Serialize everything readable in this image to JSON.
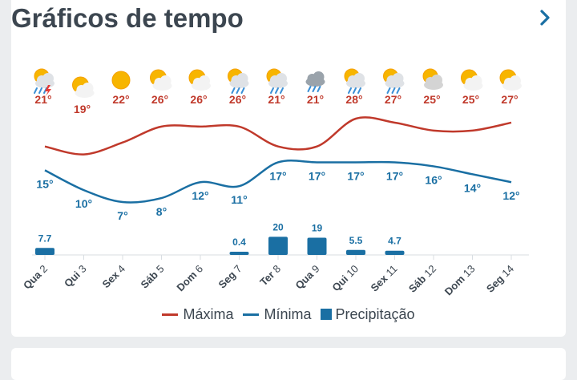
{
  "header": {
    "title": "Gráficos de tempo",
    "next_icon": "chevron-right-icon"
  },
  "colors": {
    "max": "#c0392b",
    "min": "#1a6fa3",
    "precip": "#1a6fa3",
    "axis_text": "#3c4650",
    "grid": "#d8dde2"
  },
  "chart_data": {
    "type": "line",
    "categories": [
      {
        "day": "Qua",
        "num": "2"
      },
      {
        "day": "Qui",
        "num": "3"
      },
      {
        "day": "Sex",
        "num": "4"
      },
      {
        "day": "Sáb",
        "num": "5"
      },
      {
        "day": "Dom",
        "num": "6"
      },
      {
        "day": "Seg",
        "num": "7"
      },
      {
        "day": "Ter",
        "num": "8"
      },
      {
        "day": "Qua",
        "num": "9"
      },
      {
        "day": "Qui",
        "num": "10"
      },
      {
        "day": "Sex",
        "num": "11"
      },
      {
        "day": "Sáb",
        "num": "12"
      },
      {
        "day": "Dom",
        "num": "13"
      },
      {
        "day": "Seg",
        "num": "14"
      }
    ],
    "icons": [
      "thunderstorm-sun-icon",
      "partly-sunny-icon",
      "sun-icon",
      "partly-sunny-icon",
      "partly-sunny-icon",
      "sun-rain-icon",
      "sun-rain-icon",
      "cloud-rain-icon",
      "sun-rain-icon",
      "sun-rain-icon",
      "cloudy-sun-icon",
      "partly-sunny-icon",
      "partly-sunny-icon"
    ],
    "series": [
      {
        "name": "Máxima",
        "unit": "°",
        "values": [
          21,
          19,
          22,
          26,
          26,
          26,
          21,
          21,
          28,
          27,
          25,
          25,
          27
        ]
      },
      {
        "name": "Mínima",
        "unit": "°",
        "values": [
          15,
          10,
          7,
          8,
          12,
          11,
          17,
          17,
          17,
          17,
          16,
          14,
          12
        ]
      },
      {
        "name": "Precipitação",
        "type": "bar",
        "values": [
          7.7,
          0,
          0,
          0,
          0,
          0.4,
          20,
          19,
          5.5,
          4.7,
          0,
          0,
          0
        ],
        "labels": [
          "7.7",
          "",
          "",
          "",
          "",
          "0.4",
          "20",
          "19",
          "5.5",
          "4.7",
          "",
          "",
          ""
        ]
      }
    ],
    "legend": {
      "position": "bottom",
      "items": [
        "Máxima",
        "Mínima",
        "Precipitação"
      ]
    }
  }
}
